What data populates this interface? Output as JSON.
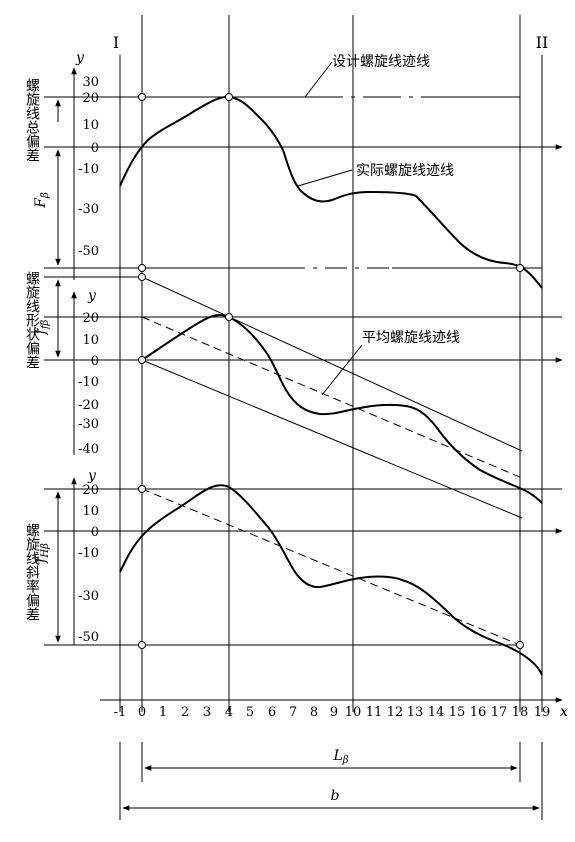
{
  "figure": {
    "panel_labels": {
      "left": "I",
      "right": "II"
    },
    "annotations": {
      "design_trace": "设计螺旋线迹线",
      "actual_trace": "实际螺旋线迹线",
      "mean_trace": "平均螺旋线迹线"
    },
    "vertical_titles": {
      "total": "螺旋线总偏差",
      "form": "螺旋线形状偏差",
      "slope": "螺旋线斜率偏差"
    },
    "symbols": {
      "total": "Fβ",
      "form": "ffβ",
      "slope": "fHβ",
      "evaluation_length": "Lβ",
      "facewidth": "b",
      "y_axis": "y",
      "x_axis": "x"
    },
    "x_ticks": [
      "-1",
      "0",
      "1",
      "2",
      "3",
      "4",
      "5",
      "6",
      "7",
      "8",
      "9",
      "10",
      "11",
      "12",
      "13",
      "14",
      "15",
      "16",
      "17",
      "18",
      "19"
    ],
    "panels": [
      {
        "name": "total",
        "y_ticks": [
          "30",
          "20",
          "10",
          "0",
          "-10",
          "-30",
          "-50"
        ]
      },
      {
        "name": "form",
        "y_ticks": [
          "20",
          "10",
          "0",
          "-10",
          "-20",
          "-30",
          "-40"
        ]
      },
      {
        "name": "slope",
        "y_ticks": [
          "20",
          "10",
          "0",
          "-10",
          "-30",
          "-50"
        ]
      }
    ]
  },
  "colors": {
    "ink": "#000000",
    "paper": "#ffffff"
  }
}
